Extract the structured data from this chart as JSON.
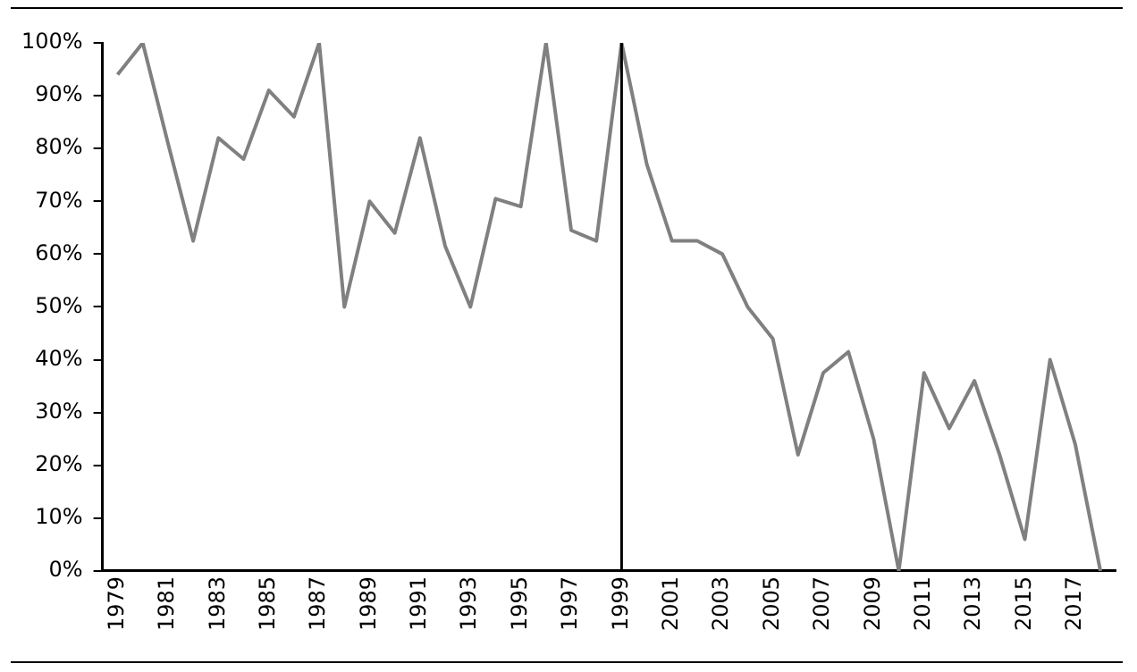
{
  "chart_data": {
    "type": "line",
    "x": [
      1979,
      1980,
      1981,
      1982,
      1983,
      1984,
      1985,
      1986,
      1987,
      1988,
      1989,
      1990,
      1991,
      1992,
      1993,
      1994,
      1995,
      1996,
      1997,
      1998,
      1999,
      2000,
      2001,
      2002,
      2003,
      2004,
      2005,
      2006,
      2007,
      2008,
      2009,
      2010,
      2011,
      2012,
      2013,
      2014,
      2015,
      2016,
      2017,
      2018
    ],
    "series": [
      {
        "color": "#808080",
        "values": [
          94,
          100,
          81,
          62.5,
          82,
          78,
          91,
          86,
          100,
          50,
          70,
          64,
          82,
          61.5,
          50,
          70.5,
          69,
          100,
          64.5,
          62.5,
          100,
          77,
          62.5,
          62.5,
          60,
          50,
          44,
          22,
          37.5,
          41.5,
          25,
          0,
          37.5,
          27,
          36,
          22,
          6,
          40,
          24,
          0
        ]
      }
    ],
    "xlim": [
      1978.4,
      2018.6
    ],
    "xticks": [
      1979,
      1981,
      1983,
      1985,
      1987,
      1989,
      1991,
      1993,
      1995,
      1997,
      1999,
      2001,
      2003,
      2005,
      2007,
      2009,
      2011,
      2013,
      2015,
      2017
    ],
    "ylim": [
      0,
      100
    ],
    "yticks": [
      {
        "value": 0,
        "label": "0%"
      },
      {
        "value": 10,
        "label": "10%"
      },
      {
        "value": 20,
        "label": "20%"
      },
      {
        "value": 30,
        "label": "30%"
      },
      {
        "value": 40,
        "label": "40%"
      },
      {
        "value": 50,
        "label": "50%"
      },
      {
        "value": 60,
        "label": "60%"
      },
      {
        "value": 70,
        "label": "70%"
      },
      {
        "value": 80,
        "label": "80%"
      },
      {
        "value": 90,
        "label": "90%"
      },
      {
        "value": 100,
        "label": "100%"
      }
    ],
    "ref_lines": [
      {
        "axis": "x",
        "value": 1999,
        "color": "#000000"
      }
    ],
    "grid": false,
    "legend": false,
    "marker": "none",
    "line_style": "solid"
  }
}
